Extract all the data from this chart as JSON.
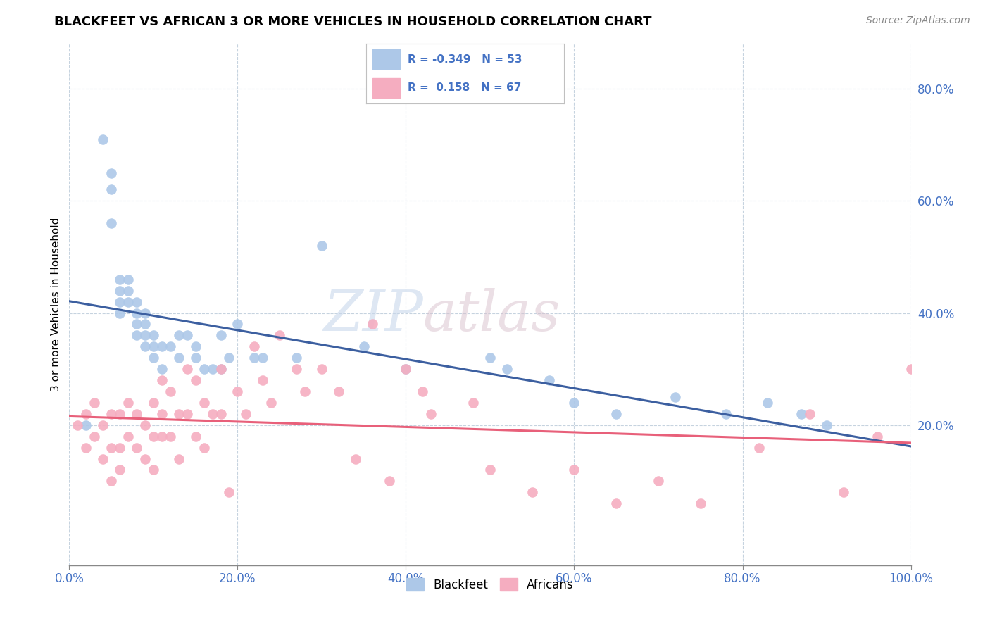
{
  "title": "BLACKFEET VS AFRICAN 3 OR MORE VEHICLES IN HOUSEHOLD CORRELATION CHART",
  "source": "Source: ZipAtlas.com",
  "ylabel": "3 or more Vehicles in Household",
  "xlim": [
    0.0,
    1.0
  ],
  "ylim": [
    -0.05,
    0.88
  ],
  "x_ticks": [
    0.0,
    0.2,
    0.4,
    0.6,
    0.8,
    1.0
  ],
  "x_tick_labels": [
    "0.0%",
    "20.0%",
    "40.0%",
    "60.0%",
    "80.0%",
    "100.0%"
  ],
  "y_ticks": [
    0.2,
    0.4,
    0.6,
    0.8
  ],
  "y_tick_labels": [
    "20.0%",
    "40.0%",
    "60.0%",
    "80.0%"
  ],
  "blackfeet_R": "-0.349",
  "blackfeet_N": "53",
  "africans_R": "0.158",
  "africans_N": "67",
  "blackfeet_color": "#adc8e8",
  "africans_color": "#f5adc0",
  "blackfeet_line_color": "#3c5fa0",
  "africans_line_color": "#e8607a",
  "watermark_1": "ZIP",
  "watermark_2": "atlas",
  "blackfeet_x": [
    0.02,
    0.04,
    0.05,
    0.05,
    0.05,
    0.06,
    0.06,
    0.06,
    0.06,
    0.07,
    0.07,
    0.07,
    0.08,
    0.08,
    0.08,
    0.08,
    0.09,
    0.09,
    0.09,
    0.09,
    0.1,
    0.1,
    0.1,
    0.11,
    0.11,
    0.12,
    0.13,
    0.13,
    0.14,
    0.15,
    0.15,
    0.16,
    0.17,
    0.18,
    0.18,
    0.19,
    0.2,
    0.22,
    0.23,
    0.27,
    0.3,
    0.35,
    0.4,
    0.5,
    0.52,
    0.57,
    0.6,
    0.65,
    0.72,
    0.78,
    0.83,
    0.87,
    0.9
  ],
  "blackfeet_y": [
    0.2,
    0.71,
    0.65,
    0.62,
    0.56,
    0.46,
    0.44,
    0.42,
    0.4,
    0.46,
    0.44,
    0.42,
    0.42,
    0.4,
    0.38,
    0.36,
    0.4,
    0.38,
    0.36,
    0.34,
    0.36,
    0.34,
    0.32,
    0.34,
    0.3,
    0.34,
    0.36,
    0.32,
    0.36,
    0.34,
    0.32,
    0.3,
    0.3,
    0.36,
    0.3,
    0.32,
    0.38,
    0.32,
    0.32,
    0.32,
    0.52,
    0.34,
    0.3,
    0.32,
    0.3,
    0.28,
    0.24,
    0.22,
    0.25,
    0.22,
    0.24,
    0.22,
    0.2
  ],
  "africans_x": [
    0.01,
    0.02,
    0.02,
    0.03,
    0.03,
    0.04,
    0.04,
    0.05,
    0.05,
    0.05,
    0.06,
    0.06,
    0.06,
    0.07,
    0.07,
    0.08,
    0.08,
    0.09,
    0.09,
    0.1,
    0.1,
    0.1,
    0.11,
    0.11,
    0.11,
    0.12,
    0.12,
    0.13,
    0.13,
    0.14,
    0.14,
    0.15,
    0.15,
    0.16,
    0.16,
    0.17,
    0.18,
    0.18,
    0.19,
    0.2,
    0.21,
    0.22,
    0.23,
    0.24,
    0.25,
    0.27,
    0.28,
    0.3,
    0.32,
    0.34,
    0.36,
    0.38,
    0.4,
    0.42,
    0.43,
    0.48,
    0.5,
    0.55,
    0.6,
    0.65,
    0.7,
    0.75,
    0.82,
    0.88,
    0.92,
    0.96,
    1.0
  ],
  "africans_y": [
    0.2,
    0.16,
    0.22,
    0.18,
    0.24,
    0.14,
    0.2,
    0.16,
    0.22,
    0.1,
    0.16,
    0.22,
    0.12,
    0.18,
    0.24,
    0.16,
    0.22,
    0.14,
    0.2,
    0.18,
    0.24,
    0.12,
    0.18,
    0.28,
    0.22,
    0.26,
    0.18,
    0.22,
    0.14,
    0.3,
    0.22,
    0.28,
    0.18,
    0.24,
    0.16,
    0.22,
    0.3,
    0.22,
    0.08,
    0.26,
    0.22,
    0.34,
    0.28,
    0.24,
    0.36,
    0.3,
    0.26,
    0.3,
    0.26,
    0.14,
    0.38,
    0.1,
    0.3,
    0.26,
    0.22,
    0.24,
    0.12,
    0.08,
    0.12,
    0.06,
    0.1,
    0.06,
    0.16,
    0.22,
    0.08,
    0.18,
    0.3
  ]
}
